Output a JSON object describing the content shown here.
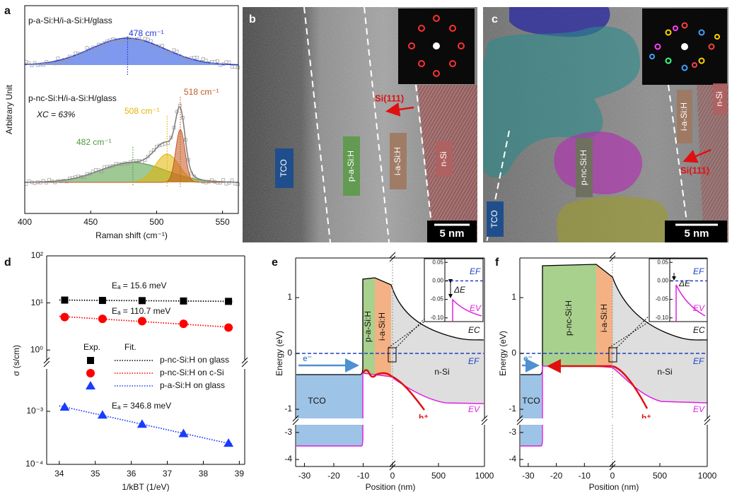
{
  "panel_labels": [
    "a",
    "b",
    "c",
    "d",
    "e",
    "f"
  ],
  "chart_data": [
    {
      "type": "raman",
      "xlabel": "Raman shift (cm⁻¹)",
      "ylabel": "Arbitrary Unit",
      "xlim": [
        400,
        562
      ],
      "xticks": [
        400,
        450,
        500,
        550
      ],
      "samples": [
        {
          "name": "p-a-Si:H/i-a-Si:H/glass",
          "color": "#5f7fea"
        },
        {
          "name": "p-nc-Si:H/i-a-Si:H/glass",
          "color": "#808080"
        }
      ],
      "crystallinity": "XC = 63%",
      "peaks": [
        {
          "label": "478 cm⁻¹",
          "x": 478,
          "color": "#2236d8"
        },
        {
          "label": "518 cm⁻¹",
          "x": 518,
          "color": "#c4561f"
        },
        {
          "label": "508 cm⁻¹",
          "x": 508,
          "color": "#e4b400"
        },
        {
          "label": "482 cm⁻¹",
          "x": 482,
          "color": "#4f9a3c"
        }
      ]
    },
    {
      "type": "scatter",
      "xlabel": "1/kBT (1/eV)",
      "ylabel": "σ (s/cm)",
      "log_y": true,
      "xlim": [
        33.65,
        39.15
      ],
      "xticks": [
        34,
        35,
        36,
        37,
        38,
        39
      ],
      "ylim": [
        [
          0.6,
          100
        ],
        [
          0.0001,
          0.0063
        ]
      ],
      "yticks": [
        {
          "value": 100,
          "label": "10²"
        },
        {
          "value": 10,
          "label": "10¹"
        },
        {
          "value": 1,
          "label": "10⁰"
        },
        {
          "value": 0.001,
          "label": "10⁻³"
        },
        {
          "value": 0.0001,
          "label": "10⁻⁴"
        }
      ],
      "legend_headers": [
        "Exp.",
        "Fit."
      ],
      "series": [
        {
          "name": "p-nc-Si:H on glass",
          "color": "#000000",
          "marker": "square",
          "x": [
            34.15,
            35.2,
            36.3,
            37.45,
            38.7
          ],
          "values": [
            11.5,
            11.3,
            11.2,
            11.0,
            10.8
          ],
          "annotation": "Eₐ = 15.6 meV"
        },
        {
          "name": "p-nc-Si:H on c-Si",
          "color": "#ff0000",
          "marker": "circle",
          "x": [
            34.15,
            35.2,
            36.3,
            37.45,
            38.7
          ],
          "values": [
            5.0,
            4.6,
            4.1,
            3.6,
            3.0
          ],
          "annotation": "Eₐ = 110.7 meV"
        },
        {
          "name": "p-a-Si:H on glass",
          "color": "#1a3cff",
          "marker": "triangle",
          "x": [
            34.15,
            35.2,
            36.3,
            37.45,
            38.7
          ],
          "values": [
            0.0012,
            0.00085,
            0.00057,
            0.00038,
            0.00025
          ],
          "annotation": "Eₐ = 346.8 meV"
        }
      ]
    },
    {
      "type": "band",
      "xlabel": "Position (nm)",
      "ylabel": "Energy (eV)",
      "xlim": [
        [
          -33,
          0
        ],
        [
          0,
          1000
        ]
      ],
      "xticks": [
        -30,
        -20,
        -10,
        0,
        500,
        1000
      ],
      "ylim": [
        [
          -1.24,
          1.71
        ],
        [
          -4.26,
          -2.82
        ]
      ],
      "yticks": [
        1,
        0,
        -1,
        -3,
        -4
      ],
      "layers": [
        "TCO",
        "p-a-Si:H",
        "i-a-Si:H",
        "n-Si"
      ],
      "band_labels": [
        "EC",
        "EF",
        "EV"
      ],
      "carriers": [
        "e⁻",
        "h⁺"
      ],
      "inset": {
        "ylim": [
          -0.11,
          0.06
        ],
        "yticks": [
          0.05,
          {
            "value": 0,
            "label": "0.00"
          },
          -0.05,
          {
            "value": -0.1,
            "label": "-0.10"
          }
        ],
        "labels": [
          "EF",
          "ΔE",
          "EV"
        ]
      }
    },
    {
      "type": "band",
      "xlabel": "Position (nm)",
      "ylabel": "Energy (eV)",
      "xlim": [
        [
          -33,
          0
        ],
        [
          0,
          1000
        ]
      ],
      "xticks": [
        -30,
        -20,
        -10,
        0,
        500,
        1000
      ],
      "ylim": [
        [
          -1.24,
          1.71
        ],
        [
          -4.26,
          -2.82
        ]
      ],
      "yticks": [
        1,
        0,
        -1,
        -3,
        -4
      ],
      "layers": [
        "TCO",
        "p-nc-Si:H",
        "i-a-Si:H",
        "n-Si"
      ],
      "band_labels": [
        "EC",
        "EF",
        "EV"
      ],
      "carriers": [
        "e⁻",
        "h⁺"
      ],
      "inset": {
        "ylim": [
          -0.11,
          0.06
        ],
        "yticks": [
          0.05,
          {
            "value": 0,
            "label": "0.00"
          },
          -0.05,
          {
            "value": -0.1,
            "label": "-0.10"
          }
        ],
        "labels": [
          "EF",
          "ΔE",
          "EV"
        ]
      }
    }
  ],
  "images": [
    {
      "labels": [
        "TCO",
        "p-a-Si:H",
        "i-a-Si:H",
        "n-Si",
        "Si(111)"
      ],
      "scale_bar": "5 nm"
    },
    {
      "labels": [
        "p-nc-Si:H",
        "i-a-Si:H",
        "n-Si",
        "TCO",
        "Si(111)"
      ],
      "scale_bar": "5 nm"
    }
  ]
}
